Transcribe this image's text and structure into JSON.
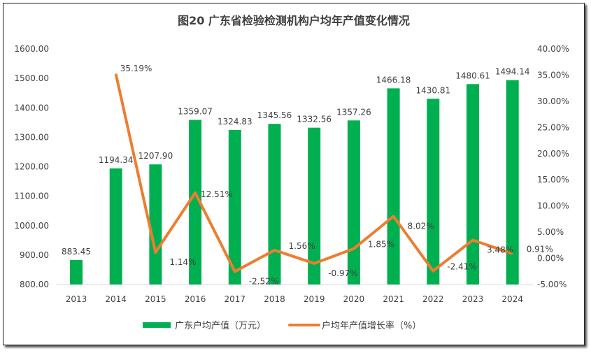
{
  "chart_data": {
    "type": "bar+line",
    "title": "图20 广东省检验检测机构户均年产值变化情况",
    "categories": [
      "2013",
      "2014",
      "2015",
      "2016",
      "2017",
      "2018",
      "2019",
      "2020",
      "2021",
      "2022",
      "2023",
      "2024"
    ],
    "series": [
      {
        "name": "广东户均产值（万元）",
        "type": "bar",
        "axis": "left",
        "color": "#00B050",
        "values": [
          883.45,
          1194.34,
          1207.9,
          1359.07,
          1324.83,
          1345.56,
          1332.56,
          1357.26,
          1466.18,
          1430.81,
          1480.61,
          1494.14
        ],
        "labels": [
          "883.45",
          "1194.34",
          "1207.90",
          "1359.07",
          "1324.83",
          "1345.56",
          "1332.56",
          "1357.26",
          "1466.18",
          "1430.81",
          "1480.61",
          "1494.14"
        ]
      },
      {
        "name": "户均年产值增长率（%）",
        "type": "line",
        "axis": "right",
        "color": "#ED7D31",
        "values": [
          null,
          35.19,
          1.14,
          12.51,
          -2.52,
          1.56,
          -0.97,
          1.85,
          8.02,
          -2.41,
          3.48,
          0.91
        ],
        "labels": [
          "",
          "35.19%",
          "1.14%",
          "12.51%",
          "-2.52%",
          "1.56%",
          "-0.97%",
          "1.85%",
          "8.02%",
          "-2.41%",
          "3.48%",
          "0.91%"
        ]
      }
    ],
    "left_axis": {
      "range": [
        800,
        1600
      ],
      "ticks": [
        "800.00",
        "900.00",
        "1000.00",
        "1100.00",
        "1200.00",
        "1300.00",
        "1400.00",
        "1500.00",
        "1600.00"
      ]
    },
    "right_axis": {
      "range": [
        -5,
        40
      ],
      "ticks": [
        "-5.00%",
        "0.00%",
        "5.00%",
        "10.00%",
        "15.00%",
        "20.00%",
        "25.00%",
        "30.00%",
        "35.00%",
        "40.00%"
      ]
    },
    "grid": false,
    "legend": "bottom"
  }
}
